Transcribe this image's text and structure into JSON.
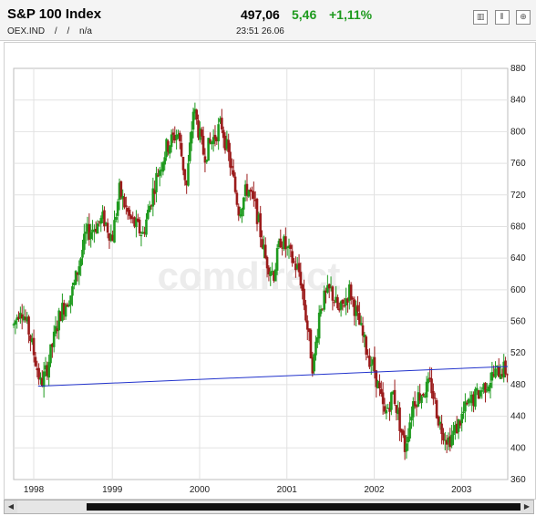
{
  "header": {
    "title": "S&P 100 Index",
    "symbol": "OEX.IND",
    "sep1": "/",
    "sep2": "/",
    "na": "n/a",
    "price": "497,06",
    "change": "5,46",
    "change_pct": "+1,11%",
    "time": "23:51",
    "date": "26.06"
  },
  "tools": [
    {
      "name": "bar-chart-icon",
      "glyph": "▥"
    },
    {
      "name": "candle-chart-icon",
      "glyph": "⫴"
    },
    {
      "name": "zoom-icon",
      "glyph": "⊕"
    }
  ],
  "watermark": "comdirect",
  "colors": {
    "up": "#1e9a1e",
    "down": "#9b1b1b",
    "trend": "#2233cc",
    "grid": "#e2e2e2"
  },
  "chart_data": {
    "type": "candlestick",
    "title": "S&P 100 Index",
    "xlabel": "",
    "ylabel": "",
    "x_start": 1997.87,
    "x_end": 2003.53,
    "ylim": [
      360,
      880
    ],
    "y_ticks": [
      360,
      400,
      440,
      480,
      520,
      560,
      600,
      640,
      680,
      720,
      760,
      800,
      840,
      880
    ],
    "x_ticks": [
      {
        "label": "1998",
        "x": 1998.1
      },
      {
        "label": "1999",
        "x": 1999.0
      },
      {
        "label": "2000",
        "x": 2000.0
      },
      {
        "label": "2001",
        "x": 2001.0
      },
      {
        "label": "2002",
        "x": 2002.0
      },
      {
        "label": "2003",
        "x": 2003.0
      }
    ],
    "series_keypoints": [
      [
        1997.87,
        555
      ],
      [
        1997.95,
        580
      ],
      [
        1998.05,
        545
      ],
      [
        1998.18,
        480
      ],
      [
        1998.25,
        500
      ],
      [
        1998.4,
        570
      ],
      [
        1998.55,
        600
      ],
      [
        1998.7,
        670
      ],
      [
        1998.9,
        690
      ],
      [
        1999.0,
        665
      ],
      [
        1999.08,
        725
      ],
      [
        1999.2,
        690
      ],
      [
        1999.35,
        670
      ],
      [
        1999.5,
        740
      ],
      [
        1999.62,
        780
      ],
      [
        1999.75,
        800
      ],
      [
        1999.85,
        730
      ],
      [
        1999.93,
        830
      ],
      [
        2000.05,
        770
      ],
      [
        2000.15,
        790
      ],
      [
        2000.25,
        810
      ],
      [
        2000.35,
        760
      ],
      [
        2000.45,
        700
      ],
      [
        2000.55,
        730
      ],
      [
        2000.65,
        700
      ],
      [
        2000.75,
        640
      ],
      [
        2000.85,
        620
      ],
      [
        2000.93,
        665
      ],
      [
        2001.05,
        640
      ],
      [
        2001.15,
        620
      ],
      [
        2001.25,
        540
      ],
      [
        2001.3,
        500
      ],
      [
        2001.38,
        580
      ],
      [
        2001.5,
        600
      ],
      [
        2001.6,
        570
      ],
      [
        2001.72,
        600
      ],
      [
        2001.82,
        560
      ],
      [
        2001.92,
        520
      ],
      [
        2002.0,
        500
      ],
      [
        2002.12,
        440
      ],
      [
        2002.22,
        470
      ],
      [
        2002.35,
        400
      ],
      [
        2002.45,
        460
      ],
      [
        2002.55,
        470
      ],
      [
        2002.65,
        480
      ],
      [
        2002.75,
        430
      ],
      [
        2002.85,
        410
      ],
      [
        2002.92,
        420
      ],
      [
        2003.05,
        450
      ],
      [
        2003.2,
        470
      ],
      [
        2003.35,
        490
      ],
      [
        2003.45,
        500
      ],
      [
        2003.53,
        497
      ]
    ],
    "trendline": {
      "x0": 1998.15,
      "y0": 478,
      "x1": 2003.53,
      "y1": 503
    }
  }
}
